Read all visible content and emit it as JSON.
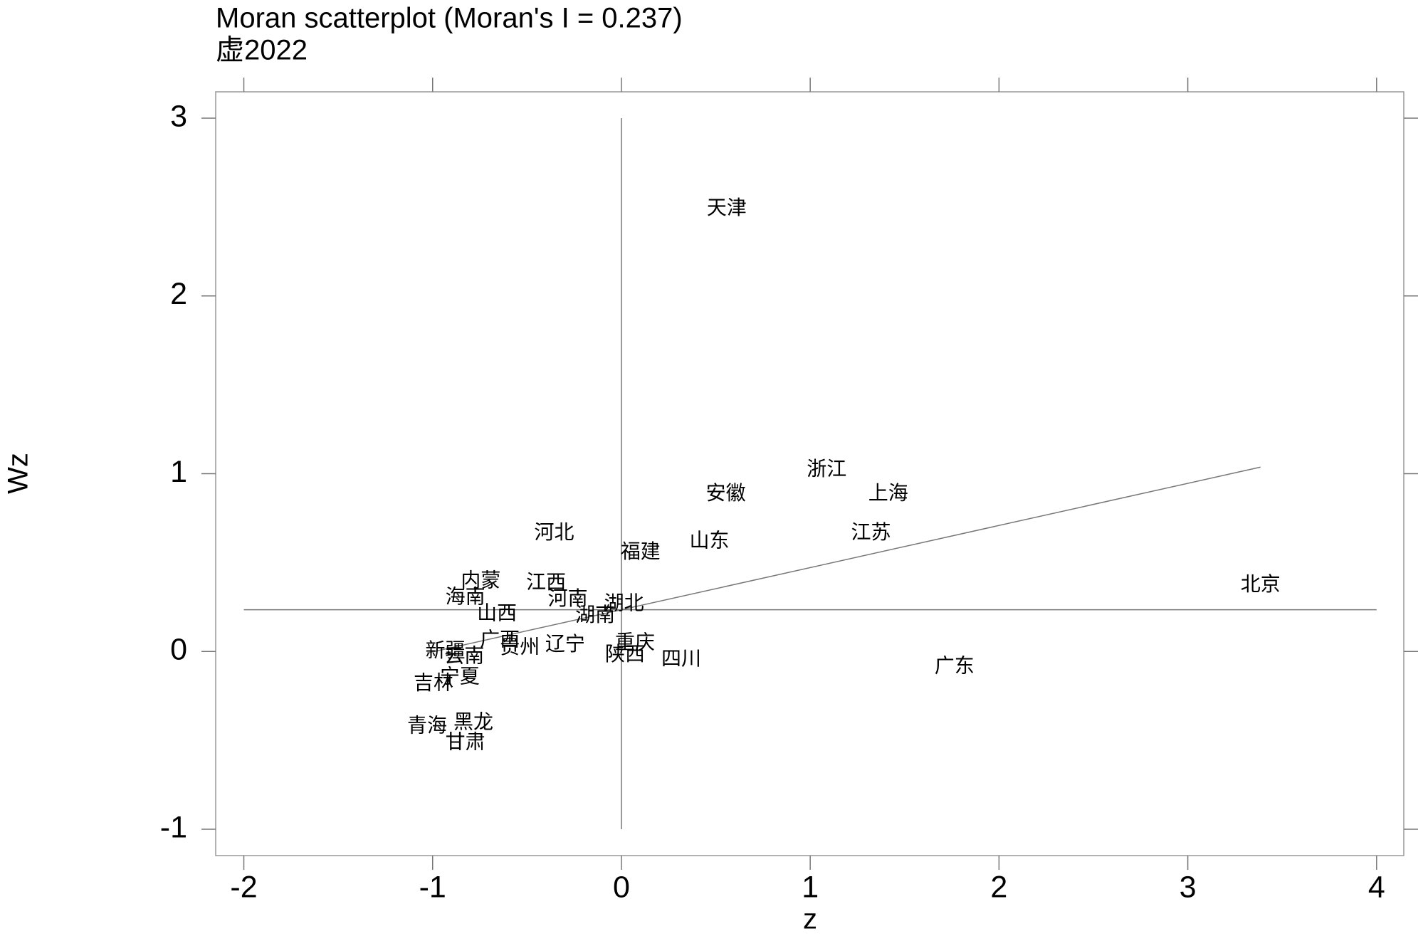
{
  "chart_data": {
    "type": "scatter",
    "title": "Moran scatterplot (Moran's I = 0.237)",
    "subtitle": "虚2022",
    "x_label": "z",
    "y_label": "Wz",
    "xlim": [
      -2.149,
      4.144
    ],
    "ylim": [
      -1.148,
      3.148
    ],
    "xticks": [
      -2,
      -1,
      0,
      1,
      2,
      3,
      4
    ],
    "yticks": [
      -1,
      0,
      1,
      2,
      3
    ],
    "hline": 0.235,
    "vline": 0,
    "fit_line": {
      "x": [
        -1.029,
        3.385
      ],
      "y": [
        -0.009,
        1.037
      ]
    },
    "color": "#000000",
    "points": {
      "labels": [
        "天津",
        "浙江",
        "上海",
        "安徽",
        "江苏",
        "山东",
        "河北",
        "福建",
        "北京",
        "内蒙",
        "江西",
        "海南",
        "河南",
        "湖北",
        "湖南",
        "山西",
        "广西",
        "贵州",
        "辽宁",
        "重庆",
        "陕西",
        "四川",
        "广东",
        "新疆",
        "云南",
        "宁夏",
        "吉林",
        "青海",
        "黑龙",
        "甘肃"
      ],
      "x": [
        0.558,
        1.087,
        1.413,
        0.553,
        1.322,
        0.466,
        -0.356,
        0.101,
        3.385,
        -0.745,
        -0.399,
        -0.827,
        -0.284,
        0.014,
        -0.139,
        -0.659,
        -0.644,
        -0.538,
        -0.298,
        0.072,
        0.019,
        0.317,
        1.764,
        -0.933,
        -0.832,
        -0.856,
        -0.995,
        -1.029,
        -0.784,
        -0.827
      ],
      "y": [
        2.49,
        1.02,
        0.883,
        0.883,
        0.663,
        0.617,
        0.663,
        0.556,
        0.372,
        0.393,
        0.383,
        0.301,
        0.291,
        0.265,
        0.199,
        0.209,
        0.061,
        0.02,
        0.036,
        0.046,
        -0.02,
        -0.046,
        -0.087,
        0.0,
        -0.031,
        -0.148,
        -0.184,
        -0.423,
        -0.403,
        -0.515
      ]
    }
  }
}
